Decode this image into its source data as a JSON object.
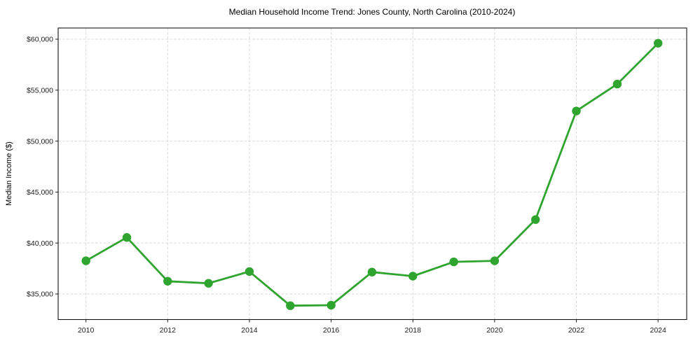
{
  "page": {
    "background": "#ffffff"
  },
  "chart_data": {
    "type": "line",
    "title": "Median Household Income Trend: Jones County, North Carolina (2010-2024)",
    "xlabel": "",
    "ylabel": "Median Income ($)",
    "x": [
      2010,
      2011,
      2012,
      2013,
      2014,
      2015,
      2016,
      2017,
      2018,
      2019,
      2020,
      2021,
      2022,
      2023,
      2024
    ],
    "values": [
      38250,
      40550,
      36250,
      36050,
      37200,
      33850,
      33900,
      37150,
      36750,
      38150,
      38250,
      42300,
      52950,
      55600,
      59600
    ],
    "xticks": [
      2010,
      2012,
      2014,
      2016,
      2018,
      2020,
      2022,
      2024
    ],
    "xtick_labels": [
      "2010",
      "2012",
      "2014",
      "2016",
      "2018",
      "2020",
      "2022",
      "2024"
    ],
    "yticks": [
      35000,
      40000,
      45000,
      50000,
      55000,
      60000
    ],
    "ytick_labels": [
      "$35,000",
      "$40,000",
      "$45,000",
      "$50,000",
      "$55,000",
      "$60,000"
    ],
    "xlim": [
      2009.32,
      2024.7
    ],
    "ylim": [
      32490,
      61100
    ],
    "grid": "on",
    "grid_style": "dashed",
    "grid_color": "#d9d9d9",
    "line_color": "#2fa42f",
    "marker": "circle",
    "marker_color": "#2fa42f",
    "legend": "none"
  }
}
